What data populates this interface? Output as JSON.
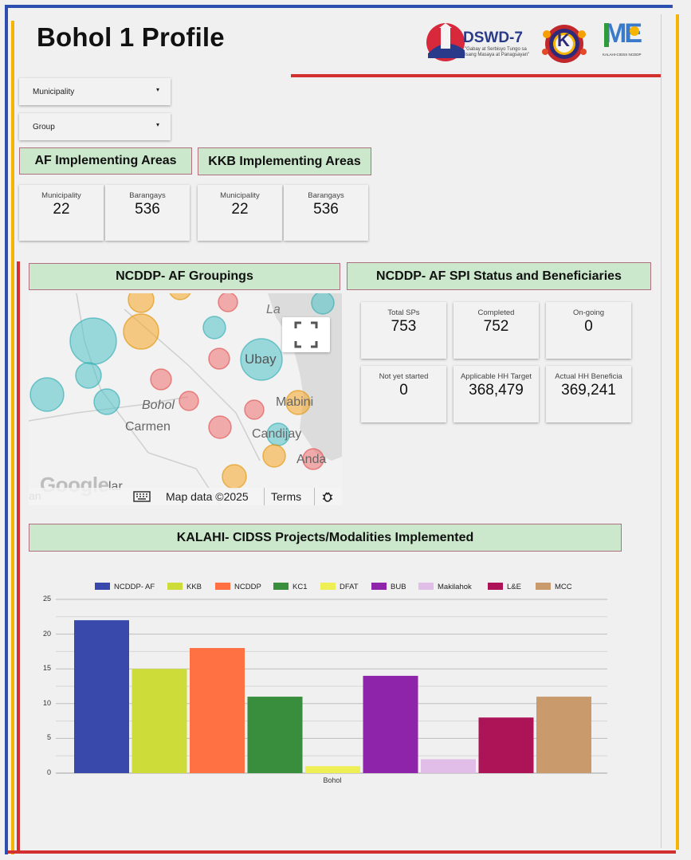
{
  "page": {
    "title": "Bohol 1 Profile",
    "accent_colors": {
      "blue": "#2d4fb0",
      "yellow": "#f5b400",
      "red": "#d33030",
      "header_bg": "#cce8cc"
    }
  },
  "logos": {
    "dswd_name": "DSWD-7",
    "dswd_tagline_1": "\"Gabay at Serbisyo Tungo sa",
    "dswd_tagline_2": "Isang Masaya at Panagsayan\"",
    "kkb_letter": "K",
    "ncddp_letters": "ME",
    "ncddp_caption": "KALAHI-CIDSS NCDDP"
  },
  "filters": {
    "municipality_label": "Municipality",
    "group_label": "Group"
  },
  "af_areas": {
    "heading": "AF Implementing Areas",
    "municipality_label": "Municipality",
    "municipality_value": "22",
    "barangays_label": "Barangays",
    "barangays_value": "536"
  },
  "kkb_areas": {
    "heading": "KKB Implementing Areas",
    "municipality_label": "Municipality",
    "municipality_value": "22",
    "barangays_label": "Barangays",
    "barangays_value": "536"
  },
  "groupings": {
    "heading": "NCDDP- AF Groupings",
    "map_labels": {
      "ubay": "Ubay",
      "bohol": "Bohol",
      "carmen": "Carmen",
      "mabini": "Mabini",
      "candijay": "Candijay",
      "anda": "Anda",
      "lag": "La",
      "ilar": "lar",
      "an": "an"
    },
    "google_logo": "Google",
    "map_data": "Map data ©2025",
    "terms": "Terms",
    "fullscreen_icon": "fullscreen-icon",
    "keyboard_icon": "keyboard-icon",
    "bug_icon": "bug-report-icon"
  },
  "spi": {
    "heading": "NCDDP- AF SPI Status and Beneficiaries",
    "cards": [
      {
        "label": "Total SPs",
        "value": "753"
      },
      {
        "label": "Completed",
        "value": "752"
      },
      {
        "label": "On-going",
        "value": "0"
      },
      {
        "label": "Not yet started",
        "value": "0"
      },
      {
        "label": "Applicable HH Target",
        "value": "368,479"
      },
      {
        "label": "Actual HH Beneficia",
        "value": "369,241"
      }
    ]
  },
  "projects": {
    "heading": "KALAHI- CIDSS Projects/Modalities Implemented"
  },
  "chart_data": {
    "type": "bar",
    "categories": [
      "Bohol"
    ],
    "series": [
      {
        "name": "NCDDP- AF",
        "values": [
          22
        ],
        "color": "#3949ab"
      },
      {
        "name": "KKB",
        "values": [
          15
        ],
        "color": "#cddc39"
      },
      {
        "name": "NCDDP",
        "values": [
          18
        ],
        "color": "#ff7043"
      },
      {
        "name": "KC1",
        "values": [
          11
        ],
        "color": "#388e3c"
      },
      {
        "name": "DFAT",
        "values": [
          1
        ],
        "color": "#eeee55"
      },
      {
        "name": "BUB",
        "values": [
          14
        ],
        "color": "#8e24aa"
      },
      {
        "name": "Makilahok",
        "values": [
          2
        ],
        "color": "#e1bee7"
      },
      {
        "name": "L&E",
        "values": [
          8
        ],
        "color": "#ad1457"
      },
      {
        "name": "MCC",
        "values": [
          11
        ],
        "color": "#c99a6b"
      }
    ],
    "yticks": [
      "0",
      "5",
      "10",
      "15",
      "20",
      "25"
    ],
    "ylim": [
      0,
      25
    ],
    "grid": true,
    "legend_position": "top"
  }
}
